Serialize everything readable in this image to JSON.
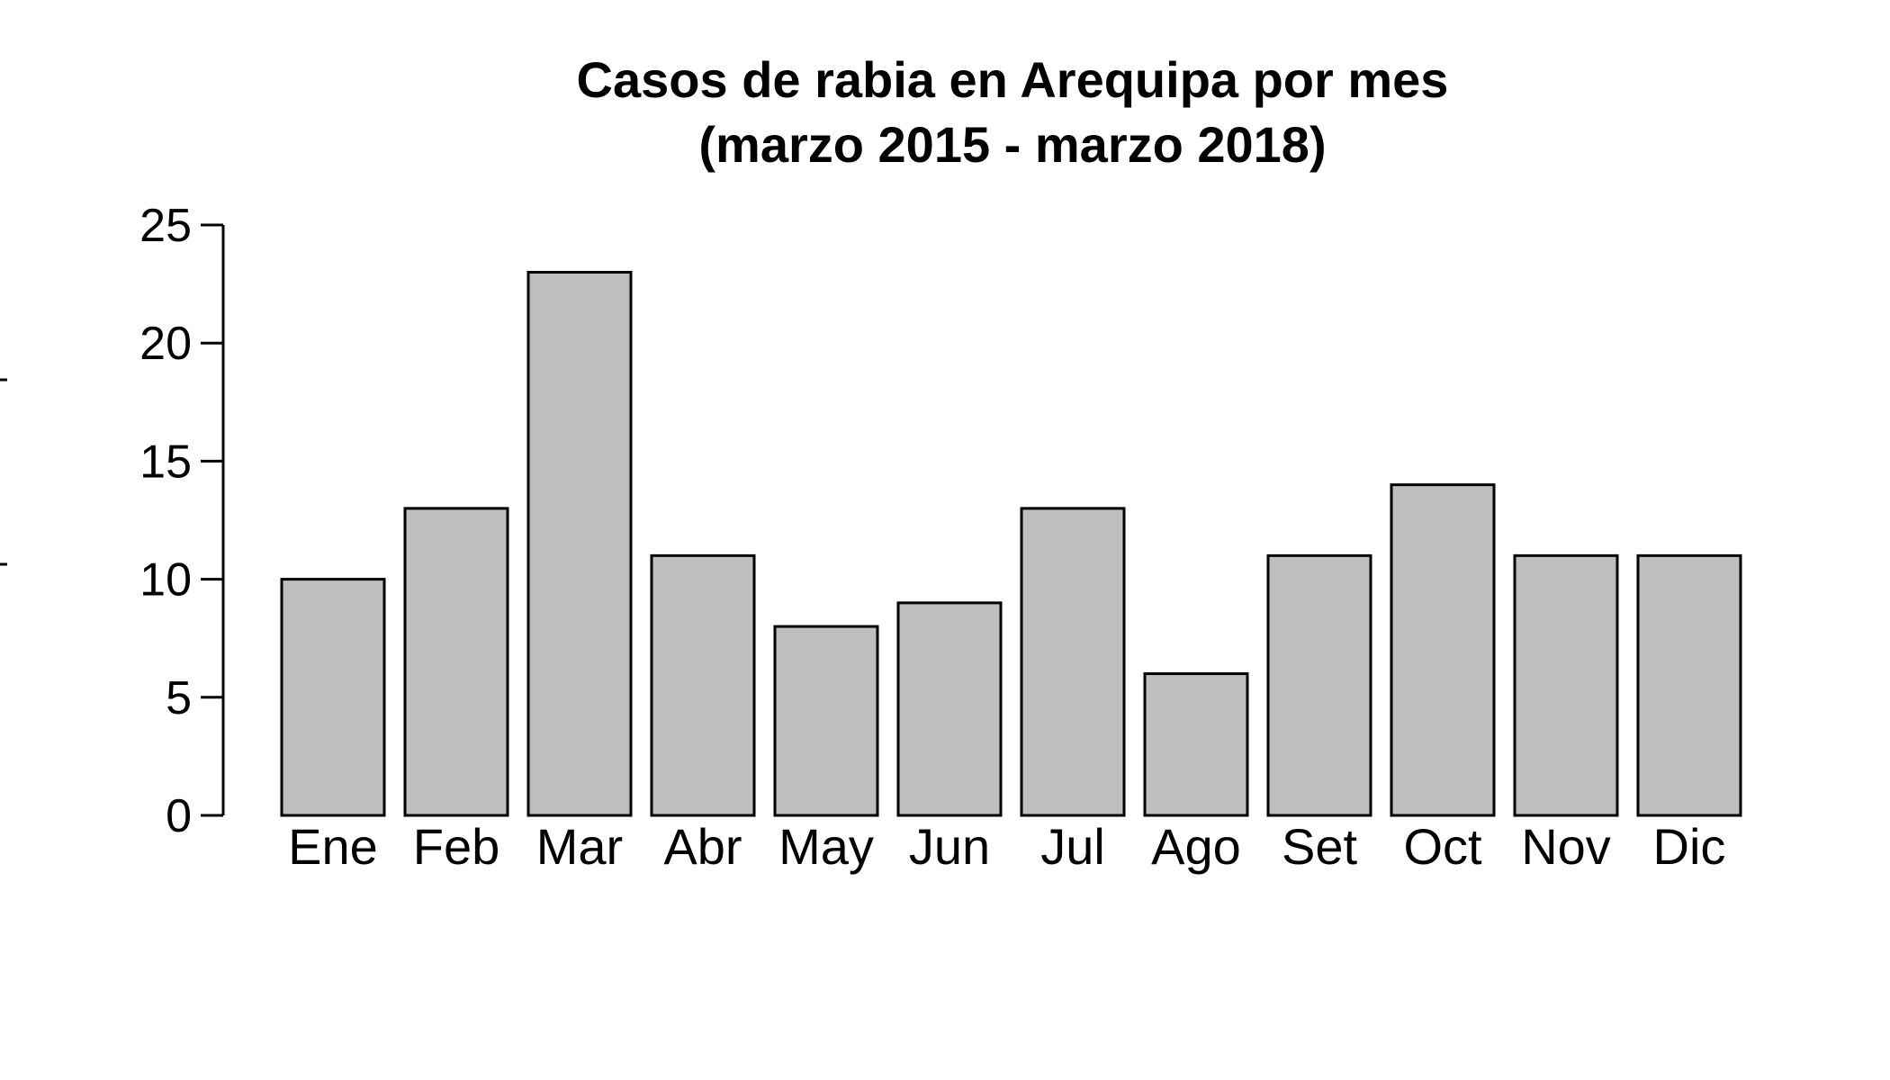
{
  "chart_data": {
    "type": "bar",
    "title": "Casos de rabia en Arequipa por mes",
    "subtitle": "(marzo 2015 - marzo 2018)",
    "categories": [
      "Ene",
      "Feb",
      "Mar",
      "Abr",
      "May",
      "Jun",
      "Jul",
      "Ago",
      "Set",
      "Oct",
      "Nov",
      "Dic"
    ],
    "values": [
      10,
      13,
      23,
      11,
      8,
      9,
      13,
      6,
      11,
      14,
      11,
      11
    ],
    "xlabel": "",
    "ylabel": "",
    "ylim": [
      0,
      25
    ],
    "yticks": [
      0,
      5,
      10,
      15,
      20,
      25
    ],
    "grid": false,
    "bar_color": "#bebebe",
    "bar_border_color": "#000000"
  }
}
